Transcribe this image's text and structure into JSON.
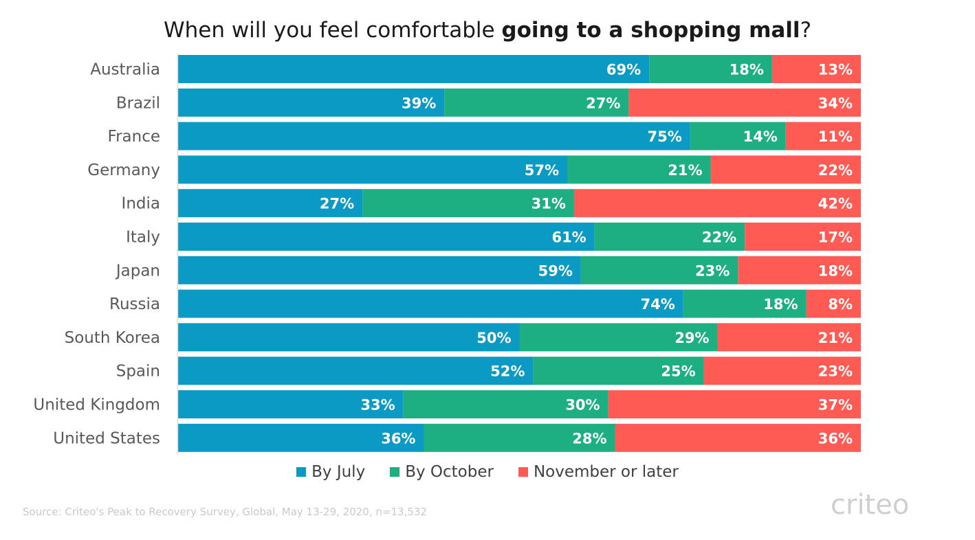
{
  "title": {
    "prefix": "When will you feel comfortable ",
    "bold": "going to a shopping mall",
    "suffix": "?"
  },
  "legend": [
    {
      "label": "By July",
      "color": "#0b9ac4"
    },
    {
      "label": "By October",
      "color": "#1daf82"
    },
    {
      "label": "November or later",
      "color": "#ff5b55"
    }
  ],
  "source": "Source: Criteo's Peak to Recovery Survey, Global, May 13-29, 2020, n=13,532",
  "logo": "criteo",
  "chart_data": {
    "type": "bar",
    "orientation": "horizontal",
    "stacked": true,
    "percent_stacked": true,
    "categories": [
      "Australia",
      "Brazil",
      "France",
      "Germany",
      "India",
      "Italy",
      "Japan",
      "Russia",
      "South Korea",
      "Spain",
      "United Kingdom",
      "United States"
    ],
    "series": [
      {
        "name": "By July",
        "color": "#0b9ac4",
        "values": [
          69,
          39,
          75,
          57,
          27,
          61,
          59,
          74,
          50,
          52,
          33,
          36
        ]
      },
      {
        "name": "By October",
        "color": "#1daf82",
        "values": [
          18,
          27,
          14,
          21,
          31,
          22,
          23,
          18,
          29,
          25,
          30,
          28
        ]
      },
      {
        "name": "November or later",
        "color": "#ff5b55",
        "values": [
          13,
          34,
          11,
          22,
          42,
          17,
          18,
          8,
          21,
          23,
          37,
          36
        ]
      }
    ],
    "value_suffix": "%",
    "title": "When will you feel comfortable going to a shopping mall?",
    "legend_position": "bottom",
    "grid": false
  }
}
